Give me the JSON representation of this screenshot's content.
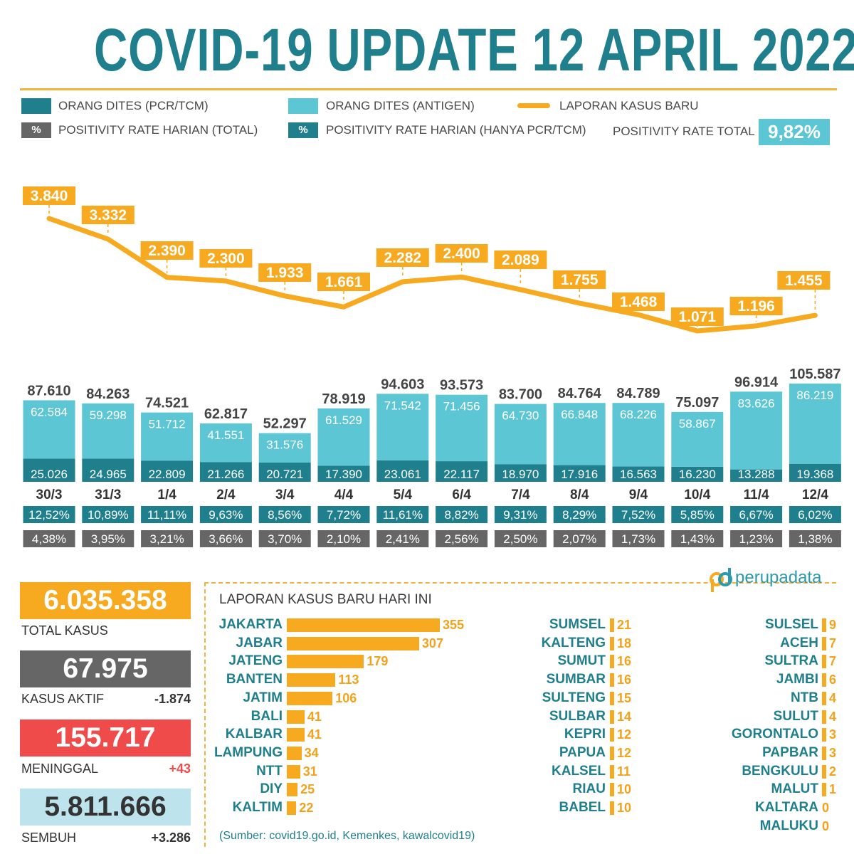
{
  "title": "COVID-19 UPDATE 12 APRIL 2022",
  "colors": {
    "pcr": "#1f7f8d",
    "antigen": "#5cc6d4",
    "cases_line": "#f7aa1f",
    "rate_total": "#666666",
    "rate_pcr": "#1f7f8d",
    "accent": "#f2b33a",
    "meninggal": "#ef4b4b",
    "sembuh": "#bde3ec"
  },
  "legend": {
    "pcr": "ORANG DITES (PCR/TCM)",
    "antigen": "ORANG DITES (ANTIGEN)",
    "cases": "LAPORAN KASUS BARU",
    "rate_total_symbol": "%",
    "rate_total": "POSITIVITY RATE HARIAN (TOTAL)",
    "rate_pcr_symbol": "%",
    "rate_pcr": "POSITIVITY RATE HARIAN (HANYA PCR/TCM)",
    "positivity_total_label": "POSITIVITY RATE TOTAL",
    "positivity_total_value": "9,82%"
  },
  "chart_data": {
    "type": "bar",
    "categories": [
      "30/3",
      "31/3",
      "1/4",
      "2/4",
      "3/4",
      "4/4",
      "5/4",
      "6/4",
      "7/4",
      "8/4",
      "9/4",
      "10/4",
      "11/4",
      "12/4"
    ],
    "new_cases": [
      3840,
      3332,
      2390,
      2300,
      1933,
      1661,
      2282,
      2400,
      2089,
      1755,
      1468,
      1071,
      1196,
      1455
    ],
    "new_cases_labels": [
      "3.840",
      "3.332",
      "2.390",
      "2.300",
      "1.933",
      "1.661",
      "2.282",
      "2.400",
      "2.089",
      "1.755",
      "1.468",
      "1.071",
      "1.196",
      "1.455"
    ],
    "pcr": [
      25026,
      24965,
      22809,
      21266,
      20721,
      17390,
      23061,
      22117,
      18970,
      17916,
      16563,
      16230,
      13288,
      19368
    ],
    "pcr_labels": [
      "25.026",
      "24.965",
      "22.809",
      "21.266",
      "20.721",
      "17.390",
      "23.061",
      "22.117",
      "18.970",
      "17.916",
      "16.563",
      "16.230",
      "13.288",
      "19.368"
    ],
    "antigen": [
      62584,
      59298,
      51712,
      41551,
      31576,
      61529,
      71542,
      71456,
      64730,
      66848,
      68226,
      58867,
      83626,
      86219
    ],
    "antigen_labels": [
      "62.584",
      "59.298",
      "51.712",
      "41.551",
      "31.576",
      "61.529",
      "71.542",
      "71.456",
      "64.730",
      "66.848",
      "68.226",
      "58.867",
      "83.626",
      "86.219"
    ],
    "total": [
      87610,
      84263,
      74521,
      62817,
      52297,
      78919,
      94603,
      93573,
      83700,
      84764,
      84789,
      75097,
      96914,
      105587
    ],
    "total_labels": [
      "87.610",
      "84.263",
      "74.521",
      "62.817",
      "52.297",
      "78.919",
      "94.603",
      "93.573",
      "83.700",
      "84.764",
      "84.789",
      "75.097",
      "96.914",
      "105.587"
    ],
    "rate_pcr": [
      "12,52%",
      "10,89%",
      "11,11%",
      "9,63%",
      "8,56%",
      "7,72%",
      "11,61%",
      "8,82%",
      "9,31%",
      "8,29%",
      "7,52%",
      "5,85%",
      "6,67%",
      "6,02%"
    ],
    "rate_total": [
      "4,38%",
      "3,95%",
      "3,21%",
      "3,66%",
      "3,70%",
      "2,10%",
      "2,41%",
      "2,56%",
      "2,50%",
      "2,07%",
      "1,73%",
      "1,43%",
      "1,23%",
      "1,38%"
    ]
  },
  "stats": {
    "total_kasus": {
      "value": "6.035.358",
      "label": "TOTAL KASUS"
    },
    "kasus_aktif": {
      "value": "67.975",
      "label": "KASUS AKTIF",
      "delta": "-1.874"
    },
    "meninggal": {
      "value": "155.717",
      "label": "MENINGGAL",
      "delta": "+43"
    },
    "sembuh": {
      "value": "5.811.666",
      "label": "SEMBUH",
      "delta": "+3.286"
    }
  },
  "provinces": {
    "title": "LAPORAN KASUS BARU HARI INI",
    "columns": [
      [
        [
          "JAKARTA",
          355
        ],
        [
          "JABAR",
          307
        ],
        [
          "JATENG",
          179
        ],
        [
          "BANTEN",
          113
        ],
        [
          "JATIM",
          106
        ],
        [
          "BALI",
          41
        ],
        [
          "KALBAR",
          41
        ],
        [
          "LAMPUNG",
          34
        ],
        [
          "NTT",
          31
        ],
        [
          "DIY",
          25
        ],
        [
          "KALTIM",
          22
        ]
      ],
      [
        [
          "SUMSEL",
          21
        ],
        [
          "KALTENG",
          18
        ],
        [
          "SUMUT",
          16
        ],
        [
          "SUMBAR",
          16
        ],
        [
          "SULTENG",
          15
        ],
        [
          "SULBAR",
          14
        ],
        [
          "KEPRI",
          12
        ],
        [
          "PAPUA",
          12
        ],
        [
          "KALSEL",
          11
        ],
        [
          "RIAU",
          10
        ],
        [
          "BABEL",
          10
        ]
      ],
      [
        [
          "SULSEL",
          9
        ],
        [
          "ACEH",
          7
        ],
        [
          "SULTRA",
          7
        ],
        [
          "JAMBI",
          6
        ],
        [
          "NTB",
          4
        ],
        [
          "SULUT",
          4
        ],
        [
          "GORONTALO",
          3
        ],
        [
          "PAPBAR",
          3
        ],
        [
          "BENGKULU",
          2
        ],
        [
          "MALUT",
          1
        ],
        [
          "KALTARA",
          0
        ],
        [
          "MALUKU",
          0
        ]
      ]
    ]
  },
  "source": "(Sumber: covid19.go.id, Kemenkes, kawalcovid19)",
  "brand": {
    "name": "perupadata",
    "icon": "perupadata-logo-icon"
  }
}
